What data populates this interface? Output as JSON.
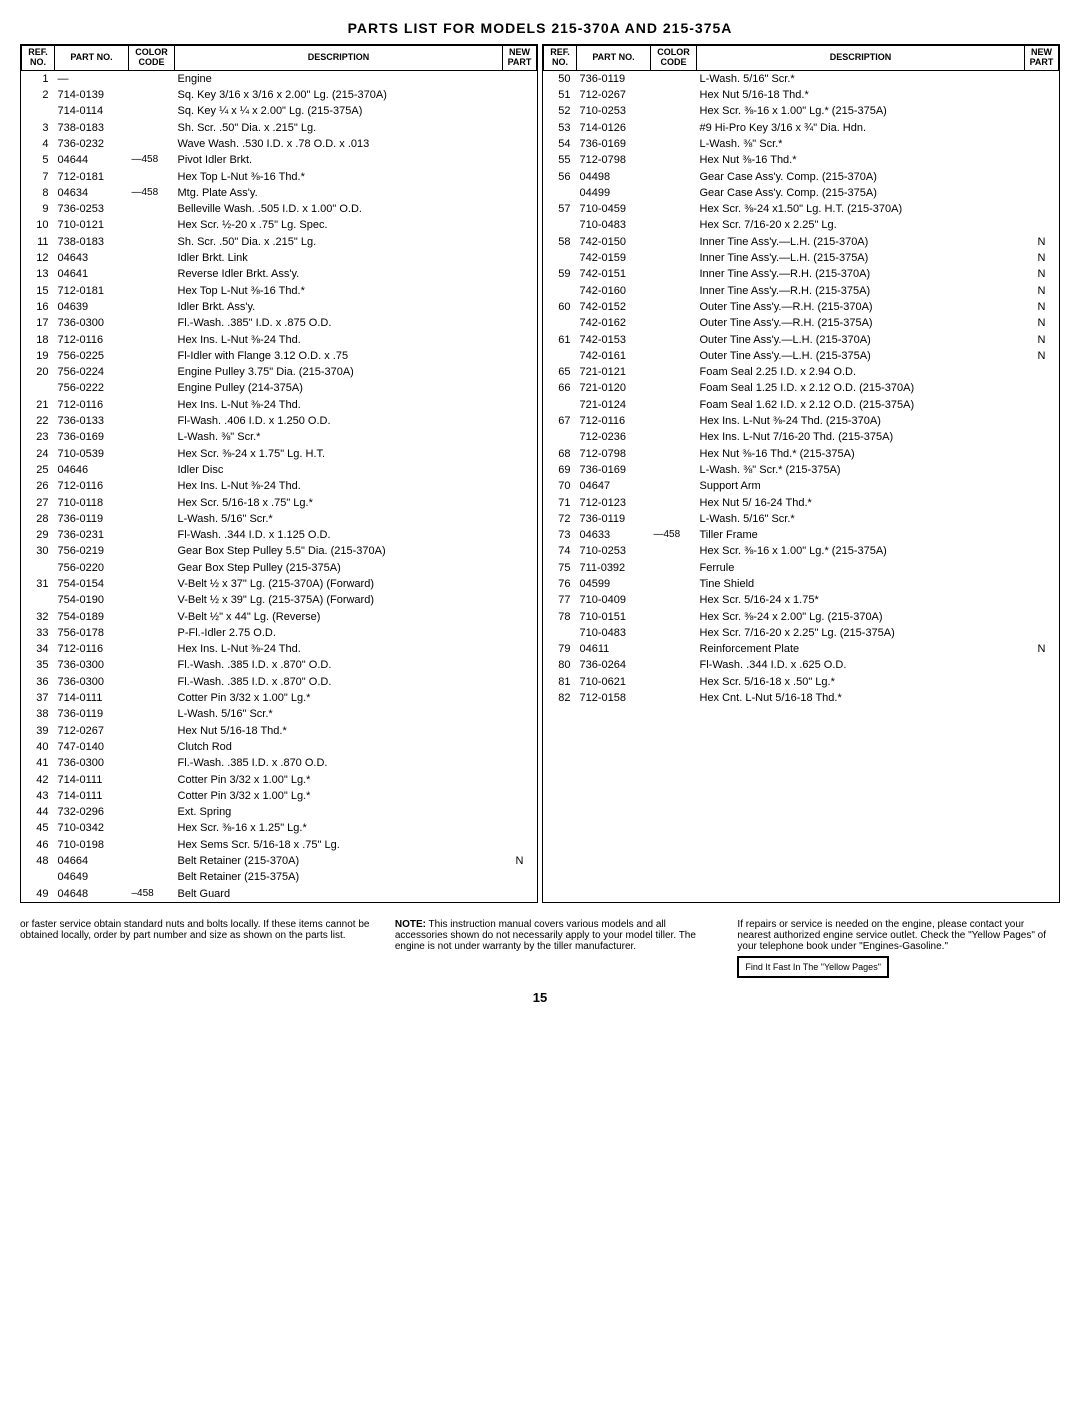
{
  "title": "PARTS LIST FOR MODELS 215-370A AND 215-375A",
  "headers": {
    "ref": "REF.\nNO.",
    "part": "PART\nNO.",
    "color": "COLOR\nCODE",
    "desc": "DESCRIPTION",
    "new": "NEW\nPART"
  },
  "left_rows": [
    {
      "ref": "1",
      "part": "—",
      "color": "",
      "desc": "Engine",
      "new": ""
    },
    {
      "ref": "2",
      "part": "714-0139",
      "color": "",
      "desc": "Sq. Key 3/16 x 3/16 x 2.00\" Lg. (215-370A)",
      "new": ""
    },
    {
      "ref": "",
      "part": "714-0114",
      "color": "",
      "desc": "Sq. Key ¼ x ¼ x 2.00\" Lg. (215-375A)",
      "new": ""
    },
    {
      "ref": "3",
      "part": "738-0183",
      "color": "",
      "desc": "Sh. Scr. .50\" Dia. x .215\" Lg.",
      "new": ""
    },
    {
      "ref": "4",
      "part": "736-0232",
      "color": "",
      "desc": "Wave Wash. .530 I.D. x .78 O.D. x .013",
      "new": ""
    },
    {
      "ref": "5",
      "part": "04644",
      "color": "—458",
      "desc": "Pivot Idler Brkt.",
      "new": ""
    },
    {
      "ref": "7",
      "part": "712-0181",
      "color": "",
      "desc": "Hex Top L-Nut ⅜-16 Thd.*",
      "new": ""
    },
    {
      "ref": "8",
      "part": "04634",
      "color": "—458",
      "desc": "Mtg. Plate Ass'y.",
      "new": ""
    },
    {
      "ref": "9",
      "part": "736-0253",
      "color": "",
      "desc": "Belleville Wash. .505 I.D. x 1.00\" O.D.",
      "new": ""
    },
    {
      "ref": "10",
      "part": "710-0121",
      "color": "",
      "desc": "Hex Scr. ½-20 x .75\" Lg. Spec.",
      "new": ""
    },
    {
      "ref": "11",
      "part": "738-0183",
      "color": "",
      "desc": "Sh. Scr. .50\" Dia. x .215\" Lg.",
      "new": ""
    },
    {
      "ref": "12",
      "part": "04643",
      "color": "",
      "desc": "Idler Brkt. Link",
      "new": ""
    },
    {
      "ref": "13",
      "part": "04641",
      "color": "",
      "desc": "Reverse Idler Brkt. Ass'y.",
      "new": ""
    },
    {
      "ref": "15",
      "part": "712-0181",
      "color": "",
      "desc": "Hex Top L-Nut ⅜-16 Thd.*",
      "new": ""
    },
    {
      "ref": "16",
      "part": "04639",
      "color": "",
      "desc": "Idler Brkt. Ass'y.",
      "new": ""
    },
    {
      "ref": "17",
      "part": "736-0300",
      "color": "",
      "desc": "Fl.-Wash. .385\" I.D. x .875 O.D.",
      "new": ""
    },
    {
      "ref": "18",
      "part": "712-0116",
      "color": "",
      "desc": "Hex Ins. L-Nut ⅜-24 Thd.",
      "new": ""
    },
    {
      "ref": "19",
      "part": "756-0225",
      "color": "",
      "desc": "Fl-Idler with Flange 3.12 O.D. x .75",
      "new": ""
    },
    {
      "ref": "20",
      "part": "756-0224",
      "color": "",
      "desc": "Engine Pulley 3.75\" Dia. (215-370A)",
      "new": ""
    },
    {
      "ref": "",
      "part": "756-0222",
      "color": "",
      "desc": "Engine Pulley (214-375A)",
      "new": ""
    },
    {
      "ref": "21",
      "part": "712-0116",
      "color": "",
      "desc": "Hex Ins. L-Nut ⅜-24 Thd.",
      "new": ""
    },
    {
      "ref": "22",
      "part": "736-0133",
      "color": "",
      "desc": "Fl-Wash. .406 I.D. x 1.250 O.D.",
      "new": ""
    },
    {
      "ref": "23",
      "part": "736-0169",
      "color": "",
      "desc": "L-Wash. ⅜\" Scr.*",
      "new": ""
    },
    {
      "ref": "24",
      "part": "710-0539",
      "color": "",
      "desc": "Hex Scr. ⅜-24 x 1.75\" Lg. H.T.",
      "new": ""
    },
    {
      "ref": "25",
      "part": "04646",
      "color": "",
      "desc": "Idler Disc",
      "new": ""
    },
    {
      "ref": "26",
      "part": "712-0116",
      "color": "",
      "desc": "Hex Ins. L-Nut ⅜-24 Thd.",
      "new": ""
    },
    {
      "ref": "27",
      "part": "710-0118",
      "color": "",
      "desc": "Hex Scr. 5/16-18 x .75\" Lg.*",
      "new": ""
    },
    {
      "ref": "28",
      "part": "736-0119",
      "color": "",
      "desc": "L-Wash. 5/16\" Scr.*",
      "new": ""
    },
    {
      "ref": "29",
      "part": "736-0231",
      "color": "",
      "desc": "Fl-Wash. .344 I.D. x 1.125 O.D.",
      "new": ""
    },
    {
      "ref": "30",
      "part": "756-0219",
      "color": "",
      "desc": "Gear Box Step Pulley 5.5\" Dia. (215-370A)",
      "new": ""
    },
    {
      "ref": "",
      "part": "756-0220",
      "color": "",
      "desc": "Gear Box Step Pulley (215-375A)",
      "new": ""
    },
    {
      "ref": "31",
      "part": "754-0154",
      "color": "",
      "desc": "V-Belt ½ x 37\" Lg. (215-370A) (Forward)",
      "new": ""
    },
    {
      "ref": "",
      "part": "754-0190",
      "color": "",
      "desc": "V-Belt ½ x 39\" Lg. (215-375A) (Forward)",
      "new": ""
    },
    {
      "ref": "32",
      "part": "754-0189",
      "color": "",
      "desc": "V-Belt ½\" x 44\" Lg. (Reverse)",
      "new": ""
    },
    {
      "ref": "33",
      "part": "756-0178",
      "color": "",
      "desc": "P-Fl.-Idler 2.75 O.D.",
      "new": ""
    },
    {
      "ref": "34",
      "part": "712-0116",
      "color": "",
      "desc": "Hex Ins. L-Nut ⅜-24 Thd.",
      "new": ""
    },
    {
      "ref": "35",
      "part": "736-0300",
      "color": "",
      "desc": "Fl.-Wash. .385 I.D. x .870\" O.D.",
      "new": ""
    },
    {
      "ref": "36",
      "part": "736-0300",
      "color": "",
      "desc": "Fl.-Wash. .385 I.D. x .870\" O.D.",
      "new": ""
    },
    {
      "ref": "37",
      "part": "714-0111",
      "color": "",
      "desc": "Cotter Pin 3/32 x 1.00\" Lg.*",
      "new": ""
    },
    {
      "ref": "38",
      "part": "736-0119",
      "color": "",
      "desc": "L-Wash. 5/16\" Scr.*",
      "new": ""
    },
    {
      "ref": "39",
      "part": "712-0267",
      "color": "",
      "desc": "Hex Nut 5/16-18 Thd.*",
      "new": ""
    },
    {
      "ref": "40",
      "part": "747-0140",
      "color": "",
      "desc": "Clutch Rod",
      "new": ""
    },
    {
      "ref": "41",
      "part": "736-0300",
      "color": "",
      "desc": "Fl.-Wash. .385 I.D. x .870 O.D.",
      "new": ""
    },
    {
      "ref": "42",
      "part": "714-0111",
      "color": "",
      "desc": "Cotter Pin 3/32 x 1.00\" Lg.*",
      "new": ""
    },
    {
      "ref": "43",
      "part": "714-0111",
      "color": "",
      "desc": "Cotter Pin 3/32 x 1.00\" Lg.*",
      "new": ""
    },
    {
      "ref": "44",
      "part": "732-0296",
      "color": "",
      "desc": "Ext. Spring",
      "new": ""
    },
    {
      "ref": "45",
      "part": "710-0342",
      "color": "",
      "desc": "Hex Scr. ⅜-16 x 1.25\" Lg.*",
      "new": ""
    },
    {
      "ref": "46",
      "part": "710-0198",
      "color": "",
      "desc": "Hex Sems Scr. 5/16-18 x .75\" Lg.",
      "new": ""
    },
    {
      "ref": "48",
      "part": "04664",
      "color": "",
      "desc": "Belt Retainer (215-370A)",
      "new": "N"
    },
    {
      "ref": "",
      "part": "04649",
      "color": "",
      "desc": "Belt Retainer (215-375A)",
      "new": ""
    },
    {
      "ref": "49",
      "part": "04648",
      "color": "–458",
      "desc": "Belt Guard",
      "new": ""
    }
  ],
  "right_rows": [
    {
      "ref": "50",
      "part": "736-0119",
      "color": "",
      "desc": "L-Wash. 5/16\" Scr.*",
      "new": ""
    },
    {
      "ref": "51",
      "part": "712-0267",
      "color": "",
      "desc": "Hex Nut 5/16-18 Thd.*",
      "new": ""
    },
    {
      "ref": "52",
      "part": "710-0253",
      "color": "",
      "desc": "Hex Scr. ⅜-16 x 1.00\" Lg.* (215-375A)",
      "new": ""
    },
    {
      "ref": "53",
      "part": "714-0126",
      "color": "",
      "desc": "#9 Hi-Pro Key 3/16 x ¾\" Dia. Hdn.",
      "new": ""
    },
    {
      "ref": "54",
      "part": "736-0169",
      "color": "",
      "desc": "L-Wash. ⅜\" Scr.*",
      "new": ""
    },
    {
      "ref": "55",
      "part": "712-0798",
      "color": "",
      "desc": "Hex Nut ⅜-16 Thd.*",
      "new": ""
    },
    {
      "ref": "56",
      "part": "04498",
      "color": "",
      "desc": "Gear Case Ass'y. Comp. (215-370A)",
      "new": ""
    },
    {
      "ref": "",
      "part": "04499",
      "color": "",
      "desc": "Gear Case Ass'y. Comp. (215-375A)",
      "new": ""
    },
    {
      "ref": "57",
      "part": "710-0459",
      "color": "",
      "desc": "Hex Scr. ⅜-24 x1.50\" Lg. H.T. (215-370A)",
      "new": ""
    },
    {
      "ref": "",
      "part": "710-0483",
      "color": "",
      "desc": "Hex Scr. 7/16-20 x 2.25\" Lg.",
      "new": ""
    },
    {
      "ref": "58",
      "part": "742-0150",
      "color": "",
      "desc": "Inner Tine Ass'y.—L.H. (215-370A)",
      "new": "N"
    },
    {
      "ref": "",
      "part": "742-0159",
      "color": "",
      "desc": "Inner Tine Ass'y.—L.H. (215-375A)",
      "new": "N"
    },
    {
      "ref": "59",
      "part": "742-0151",
      "color": "",
      "desc": "Inner Tine Ass'y.—R.H. (215-370A)",
      "new": "N"
    },
    {
      "ref": "",
      "part": "742-0160",
      "color": "",
      "desc": "Inner Tine Ass'y.—R.H. (215-375A)",
      "new": "N"
    },
    {
      "ref": "60",
      "part": "742-0152",
      "color": "",
      "desc": "Outer Tine Ass'y.—R.H. (215-370A)",
      "new": "N"
    },
    {
      "ref": "",
      "part": "742-0162",
      "color": "",
      "desc": "Outer Tine Ass'y.—R.H. (215-375A)",
      "new": "N"
    },
    {
      "ref": "61",
      "part": "742-0153",
      "color": "",
      "desc": "Outer Tine Ass'y.—L.H. (215-370A)",
      "new": "N"
    },
    {
      "ref": "",
      "part": "742-0161",
      "color": "",
      "desc": "Outer Tine Ass'y.—L.H. (215-375A)",
      "new": "N"
    },
    {
      "ref": "65",
      "part": "721-0121",
      "color": "",
      "desc": "Foam Seal 2.25 I.D. x 2.94 O.D.",
      "new": ""
    },
    {
      "ref": "66",
      "part": "721-0120",
      "color": "",
      "desc": "Foam Seal 1.25 I.D. x 2.12 O.D. (215-370A)",
      "new": ""
    },
    {
      "ref": "",
      "part": "721-0124",
      "color": "",
      "desc": "Foam Seal 1.62 I.D. x 2.12 O.D. (215-375A)",
      "new": ""
    },
    {
      "ref": "67",
      "part": "712-0116",
      "color": "",
      "desc": "Hex Ins. L-Nut ⅜-24 Thd. (215-370A)",
      "new": ""
    },
    {
      "ref": "",
      "part": "712-0236",
      "color": "",
      "desc": "Hex Ins. L-Nut 7/16-20 Thd. (215-375A)",
      "new": ""
    },
    {
      "ref": "68",
      "part": "712-0798",
      "color": "",
      "desc": "Hex Nut ⅜-16 Thd.* (215-375A)",
      "new": ""
    },
    {
      "ref": "69",
      "part": "736-0169",
      "color": "",
      "desc": "L-Wash. ⅜\" Scr.* (215-375A)",
      "new": ""
    },
    {
      "ref": "70",
      "part": "04647",
      "color": "",
      "desc": "Support Arm",
      "new": ""
    },
    {
      "ref": "71",
      "part": "712-0123",
      "color": "",
      "desc": "Hex Nut 5/ 16-24 Thd.*",
      "new": ""
    },
    {
      "ref": "72",
      "part": "736-0119",
      "color": "",
      "desc": "L-Wash. 5/16\" Scr.*",
      "new": ""
    },
    {
      "ref": "73",
      "part": "04633",
      "color": "—458",
      "desc": "Tiller Frame",
      "new": ""
    },
    {
      "ref": "74",
      "part": "710-0253",
      "color": "",
      "desc": "Hex Scr. ⅜-16 x 1.00\" Lg.* (215-375A)",
      "new": ""
    },
    {
      "ref": "75",
      "part": "711-0392",
      "color": "",
      "desc": "Ferrule",
      "new": ""
    },
    {
      "ref": "76",
      "part": "04599",
      "color": "",
      "desc": "Tine Shield",
      "new": ""
    },
    {
      "ref": "77",
      "part": "710-0409",
      "color": "",
      "desc": "Hex Scr. 5/16-24 x 1.75*",
      "new": ""
    },
    {
      "ref": "78",
      "part": "710-0151",
      "color": "",
      "desc": "Hex Scr. ⅜-24 x 2.00\" Lg. (215-370A)",
      "new": ""
    },
    {
      "ref": "",
      "part": "710-0483",
      "color": "",
      "desc": "Hex Scr. 7/16-20 x 2.25\" Lg. (215-375A)",
      "new": ""
    },
    {
      "ref": "79",
      "part": "04611",
      "color": "",
      "desc": "Reinforcement Plate",
      "new": "N"
    },
    {
      "ref": "80",
      "part": "736-0264",
      "color": "",
      "desc": "Fl-Wash. .344 I.D. x .625 O.D.",
      "new": ""
    },
    {
      "ref": "81",
      "part": "710-0621",
      "color": "",
      "desc": "Hex Scr. 5/16-18 x .50\" Lg.*",
      "new": ""
    },
    {
      "ref": "82",
      "part": "712-0158",
      "color": "",
      "desc": "Hex Cnt. L-Nut 5/16-18 Thd.*",
      "new": ""
    }
  ],
  "footer": {
    "left": "or faster service obtain standard nuts and bolts locally. If these items cannot be obtained locally, order by part number and size as shown on the parts list.",
    "mid_label": "NOTE:",
    "mid": " This instruction manual covers various models and all accessories shown do not necessarily apply to your model tiller. The engine is not under warranty by the tiller manufacturer.",
    "right": "If repairs or service is needed on the engine, please contact your nearest authorized engine service outlet. Check the \"Yellow Pages\" of your telephone book under \"Engines-Gasoline.\"",
    "callout": "Find It Fast In The \"Yellow Pages\""
  },
  "page_number": "15"
}
